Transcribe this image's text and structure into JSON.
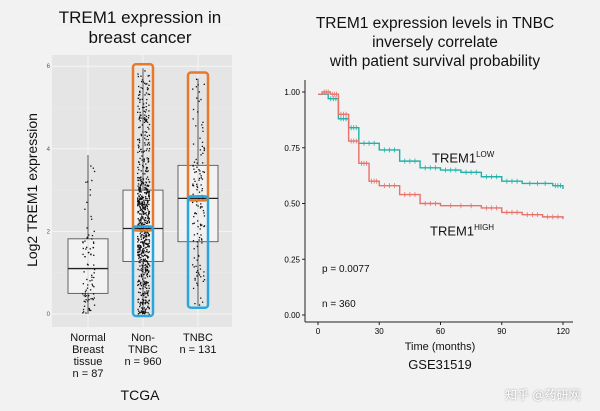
{
  "chart_data": [
    {
      "type": "box",
      "title": "TREM1 expression in breast cancer",
      "title_lines": [
        "TREM1 expression in",
        "breast cancer"
      ],
      "ylabel": "Log2 TREM1 expression",
      "xlabel": "TCGA",
      "ylim": [
        -0.3,
        6.2
      ],
      "yticks": [
        0,
        2,
        4,
        6
      ],
      "grid": true,
      "panel_background": "#e5e5e5",
      "categories": [
        {
          "lines": [
            "Normal",
            "Breast",
            "tissue",
            "n = 87"
          ],
          "n": 87,
          "q1": 0.5,
          "median": 1.1,
          "q3": 1.82,
          "min": 0.0,
          "max": 3.85
        },
        {
          "lines": [
            "Non-",
            "TNBC",
            "n = 960"
          ],
          "n": 960,
          "q1": 1.27,
          "median": 2.07,
          "q3": 3.0,
          "min": 0.0,
          "max": 5.95
        },
        {
          "lines": [
            "TNBC",
            "n = 131"
          ],
          "n": 131,
          "q1": 1.75,
          "median": 2.8,
          "q3": 3.6,
          "min": 0.2,
          "max": 5.7
        }
      ],
      "highlights": [
        {
          "category": 1,
          "range": [
            2.07,
            6.0
          ],
          "color": "#e8782a",
          "meaning": "high"
        },
        {
          "category": 1,
          "range": [
            0.0,
            2.07
          ],
          "color": "#2aa6dc",
          "meaning": "low"
        },
        {
          "category": 2,
          "range": [
            2.8,
            5.8
          ],
          "color": "#e8782a",
          "meaning": "high"
        },
        {
          "category": 2,
          "range": [
            0.2,
            2.8
          ],
          "color": "#2aa6dc",
          "meaning": "low"
        }
      ]
    },
    {
      "type": "line",
      "subtype": "kaplan-meier",
      "title_lines": [
        "TREM1 expression levels in TNBC",
        "inversely correlate",
        "with patient survival probability"
      ],
      "xlabel": "Time (months)",
      "source_label": "GSE31519",
      "xlim": [
        -5,
        125
      ],
      "ylim": [
        0,
        1.02
      ],
      "xticks": [
        0,
        30,
        60,
        90,
        120
      ],
      "yticks": [
        "0.00",
        "0.25",
        "0.50",
        "0.75",
        "1.00"
      ],
      "annotations": {
        "p": "p = 0.0077",
        "n": "n = 360"
      },
      "series": [
        {
          "name": "TREM1",
          "sup": "LOW",
          "color": "#20b2aa",
          "x": [
            0,
            5,
            10,
            15,
            20,
            30,
            40,
            50,
            60,
            70,
            80,
            90,
            100,
            115,
            120
          ],
          "y": [
            0.99,
            0.97,
            0.88,
            0.84,
            0.77,
            0.74,
            0.69,
            0.66,
            0.65,
            0.64,
            0.62,
            0.6,
            0.59,
            0.58,
            0.565
          ]
        },
        {
          "name": "TREM1",
          "sup": "HIGH",
          "color": "#e8716a",
          "x": [
            0,
            2,
            6,
            10,
            15,
            20,
            25,
            30,
            40,
            50,
            60,
            80,
            90,
            100,
            110,
            120
          ],
          "y": [
            0.99,
            1.0,
            0.99,
            0.9,
            0.78,
            0.68,
            0.6,
            0.58,
            0.54,
            0.5,
            0.49,
            0.48,
            0.46,
            0.45,
            0.44,
            0.43
          ]
        }
      ]
    }
  ],
  "watermark": "知乎 @药研网"
}
